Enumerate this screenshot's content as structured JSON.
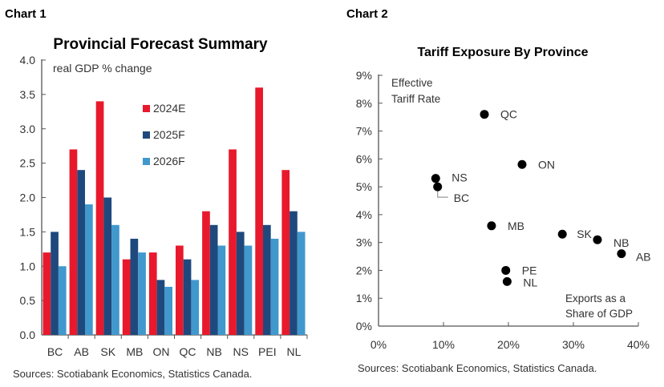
{
  "chart_data": [
    {
      "type": "bar",
      "label": "Chart 1",
      "title": "Provincial Forecast Summary",
      "ylabel": "real GDP % change",
      "categories": [
        "BC",
        "AB",
        "SK",
        "MB",
        "ON",
        "QC",
        "NB",
        "NS",
        "PEI",
        "NL"
      ],
      "series": [
        {
          "name": "2024E",
          "color": "#e8192c",
          "values": [
            1.2,
            2.7,
            3.4,
            1.1,
            1.2,
            1.3,
            1.8,
            2.7,
            3.6,
            2.4
          ]
        },
        {
          "name": "2025F",
          "color": "#1f497d",
          "values": [
            1.5,
            2.4,
            2.0,
            1.4,
            0.8,
            1.1,
            1.6,
            1.5,
            1.6,
            1.8
          ]
        },
        {
          "name": "2026F",
          "color": "#4198cd",
          "values": [
            1.0,
            1.9,
            1.6,
            1.2,
            0.7,
            0.8,
            1.3,
            1.3,
            1.4,
            1.5
          ]
        }
      ],
      "ylim": [
        0,
        4.0
      ],
      "yticks": [
        "0.0",
        "0.5",
        "1.0",
        "1.5",
        "2.0",
        "2.5",
        "3.0",
        "3.5",
        "4.0"
      ],
      "legend": "top-center",
      "grid": false,
      "source": "Sources: Scotiabank Economics, Statistics Canada."
    },
    {
      "type": "scatter",
      "label": "Chart 2",
      "title": "Tariff Exposure By Province",
      "ylabel": "Effective Tariff Rate",
      "xlabel": "Exports as a Share of GDP",
      "xlim": [
        0,
        40
      ],
      "ylim": [
        0,
        9
      ],
      "xticks": [
        "0%",
        "10%",
        "20%",
        "30%",
        "40%"
      ],
      "yticks": [
        "0%",
        "1%",
        "2%",
        "3%",
        "4%",
        "5%",
        "6%",
        "7%",
        "8%",
        "9%"
      ],
      "grid": false,
      "point_color": "#000000",
      "points": [
        {
          "label": "QC",
          "x": 16.3,
          "y": 7.6
        },
        {
          "label": "ON",
          "x": 22.1,
          "y": 5.8
        },
        {
          "label": "NS",
          "x": 8.8,
          "y": 5.3
        },
        {
          "label": "BC",
          "x": 9.1,
          "y": 5.0
        },
        {
          "label": "MB",
          "x": 17.4,
          "y": 3.6
        },
        {
          "label": "SK",
          "x": 28.3,
          "y": 3.3
        },
        {
          "label": "NB",
          "x": 33.7,
          "y": 3.1
        },
        {
          "label": "AB",
          "x": 37.4,
          "y": 2.6
        },
        {
          "label": "PE",
          "x": 19.6,
          "y": 2.0
        },
        {
          "label": "NL",
          "x": 19.8,
          "y": 1.6
        }
      ],
      "source": "Sources: Scotiabank Economics, Statistics Canada."
    }
  ]
}
